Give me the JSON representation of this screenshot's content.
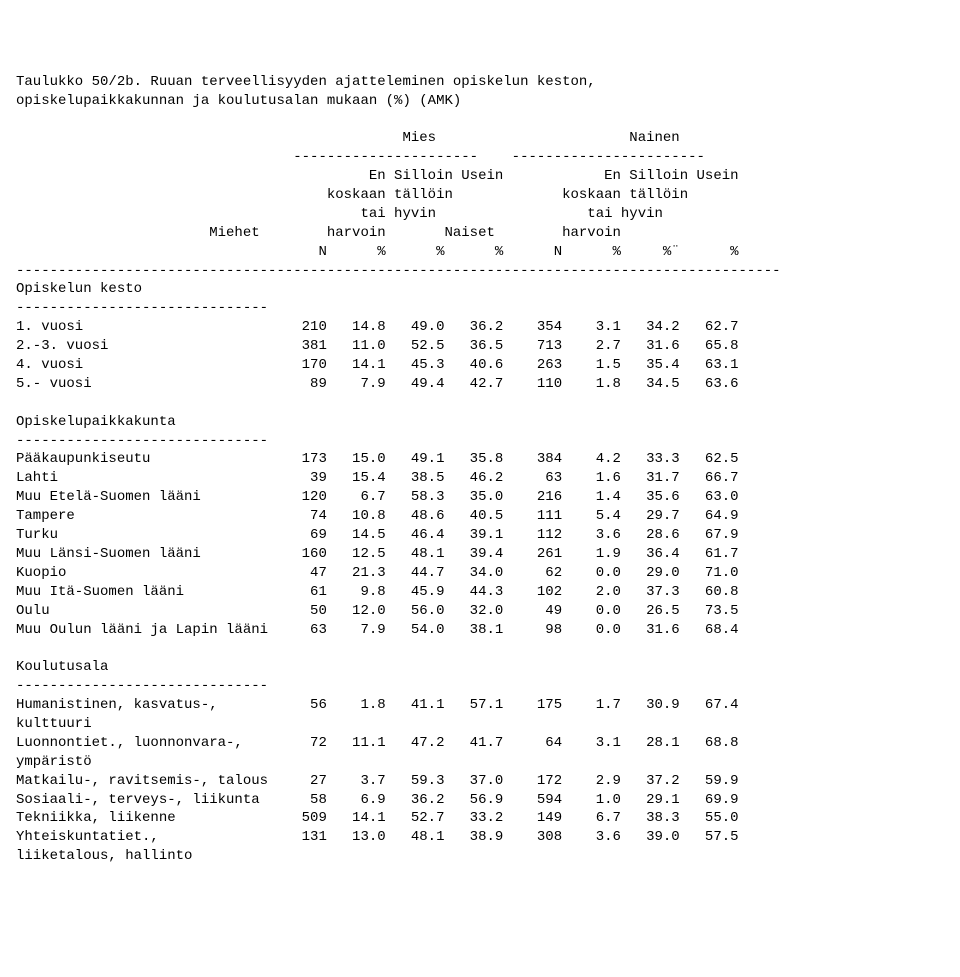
{
  "meta": {
    "font_family": "Courier New, monospace",
    "font_size_pt": 11,
    "text_color": "#000000",
    "background_color": "#ffffff"
  },
  "title": {
    "line1": "Taulukko 50/2b. Ruuan terveellisyyden ajatteleminen opiskelun keston,",
    "line2": "opiskelupaikkakunnan ja koulutusalan mukaan (%) (AMK)"
  },
  "header": {
    "g1": "Mies",
    "g2": "Nainen",
    "col_n": "N",
    "col_pct": "%",
    "col_pct2": "%¨",
    "h1": "En",
    "h2": "Silloin",
    "h3": "Usein",
    "h4": "koskaan",
    "h5": "tällöin",
    "h6": "tai",
    "h7": "hyvin",
    "h8": "harvoin",
    "row_count1": "Miehet",
    "row_count2": "Naiset",
    "dash22": "----------------------",
    "dash23": "-----------------------",
    "dash_full": "-------------------------------------------------------------------------------------------",
    "dash30": "------------------------------"
  },
  "sections": [
    {
      "title": "Opiskelun kesto",
      "rows": [
        {
          "label": "1. vuosi",
          "mN": "210",
          "m1": "14.8",
          "m2": "49.0",
          "m3": "36.2",
          "nN": "354",
          "n1": "3.1",
          "n2": "34.2",
          "n3": "62.7"
        },
        {
          "label": "2.-3. vuosi",
          "mN": "381",
          "m1": "11.0",
          "m2": "52.5",
          "m3": "36.5",
          "nN": "713",
          "n1": "2.7",
          "n2": "31.6",
          "n3": "65.8"
        },
        {
          "label": "4. vuosi",
          "mN": "170",
          "m1": "14.1",
          "m2": "45.3",
          "m3": "40.6",
          "nN": "263",
          "n1": "1.5",
          "n2": "35.4",
          "n3": "63.1"
        },
        {
          "label": "5.- vuosi",
          "mN": "89",
          "m1": "7.9",
          "m2": "49.4",
          "m3": "42.7",
          "nN": "110",
          "n1": "1.8",
          "n2": "34.5",
          "n3": "63.6"
        }
      ]
    },
    {
      "title": "Opiskelupaikkakunta",
      "rows": [
        {
          "label": "Pääkaupunkiseutu",
          "mN": "173",
          "m1": "15.0",
          "m2": "49.1",
          "m3": "35.8",
          "nN": "384",
          "n1": "4.2",
          "n2": "33.3",
          "n3": "62.5"
        },
        {
          "label": "Lahti",
          "mN": "39",
          "m1": "15.4",
          "m2": "38.5",
          "m3": "46.2",
          "nN": "63",
          "n1": "1.6",
          "n2": "31.7",
          "n3": "66.7"
        },
        {
          "label": "Muu Etelä-Suomen lääni",
          "mN": "120",
          "m1": "6.7",
          "m2": "58.3",
          "m3": "35.0",
          "nN": "216",
          "n1": "1.4",
          "n2": "35.6",
          "n3": "63.0"
        },
        {
          "label": "Tampere",
          "mN": "74",
          "m1": "10.8",
          "m2": "48.6",
          "m3": "40.5",
          "nN": "111",
          "n1": "5.4",
          "n2": "29.7",
          "n3": "64.9"
        },
        {
          "label": "Turku",
          "mN": "69",
          "m1": "14.5",
          "m2": "46.4",
          "m3": "39.1",
          "nN": "112",
          "n1": "3.6",
          "n2": "28.6",
          "n3": "67.9"
        },
        {
          "label": "Muu Länsi-Suomen lääni",
          "mN": "160",
          "m1": "12.5",
          "m2": "48.1",
          "m3": "39.4",
          "nN": "261",
          "n1": "1.9",
          "n2": "36.4",
          "n3": "61.7"
        },
        {
          "label": "Kuopio",
          "mN": "47",
          "m1": "21.3",
          "m2": "44.7",
          "m3": "34.0",
          "nN": "62",
          "n1": "0.0",
          "n2": "29.0",
          "n3": "71.0"
        },
        {
          "label": "Muu Itä-Suomen lääni",
          "mN": "61",
          "m1": "9.8",
          "m2": "45.9",
          "m3": "44.3",
          "nN": "102",
          "n1": "2.0",
          "n2": "37.3",
          "n3": "60.8"
        },
        {
          "label": "Oulu",
          "mN": "50",
          "m1": "12.0",
          "m2": "56.0",
          "m3": "32.0",
          "nN": "49",
          "n1": "0.0",
          "n2": "26.5",
          "n3": "73.5"
        },
        {
          "label": "Muu Oulun lääni ja Lapin lääni",
          "mN": "63",
          "m1": "7.9",
          "m2": "54.0",
          "m3": "38.1",
          "nN": "98",
          "n1": "0.0",
          "n2": "31.6",
          "n3": "68.4"
        }
      ]
    },
    {
      "title": "Koulutusala",
      "rows": [
        {
          "label": "Humanistinen, kasvatus-,",
          "label2": "kulttuuri",
          "mN": "56",
          "m1": "1.8",
          "m2": "41.1",
          "m3": "57.1",
          "nN": "175",
          "n1": "1.7",
          "n2": "30.9",
          "n3": "67.4"
        },
        {
          "label": "Luonnontiet., luonnonvara-,",
          "label2": "ympäristö",
          "mN": "72",
          "m1": "11.1",
          "m2": "47.2",
          "m3": "41.7",
          "nN": "64",
          "n1": "3.1",
          "n2": "28.1",
          "n3": "68.8"
        },
        {
          "label": "Matkailu-, ravitsemis-, talous",
          "mN": "27",
          "m1": "3.7",
          "m2": "59.3",
          "m3": "37.0",
          "nN": "172",
          "n1": "2.9",
          "n2": "37.2",
          "n3": "59.9"
        },
        {
          "label": "Sosiaali-, terveys-, liikunta",
          "mN": "58",
          "m1": "6.9",
          "m2": "36.2",
          "m3": "56.9",
          "nN": "594",
          "n1": "1.0",
          "n2": "29.1",
          "n3": "69.9"
        },
        {
          "label": "Tekniikka, liikenne",
          "mN": "509",
          "m1": "14.1",
          "m2": "52.7",
          "m3": "33.2",
          "nN": "149",
          "n1": "6.7",
          "n2": "38.3",
          "n3": "55.0"
        },
        {
          "label": "Yhteiskuntatiet.,",
          "label2": "liiketalous, hallinto",
          "mN": "131",
          "m1": "13.0",
          "m2": "48.1",
          "m3": "38.9",
          "nN": "308",
          "n1": "3.6",
          "n2": "39.0",
          "n3": "57.5"
        }
      ]
    }
  ],
  "layout": {
    "label_w": 31,
    "nw": 6,
    "cw": 7
  }
}
